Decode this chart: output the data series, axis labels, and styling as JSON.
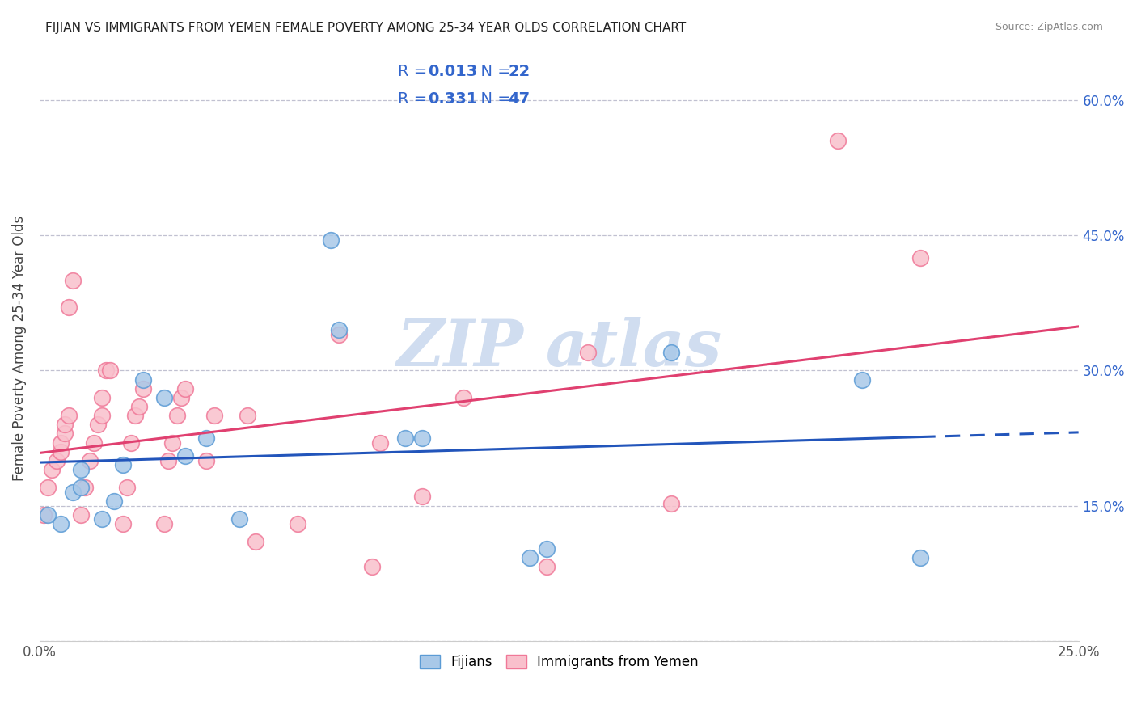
{
  "title": "FIJIAN VS IMMIGRANTS FROM YEMEN FEMALE POVERTY AMONG 25-34 YEAR OLDS CORRELATION CHART",
  "source": "Source: ZipAtlas.com",
  "ylabel": "Female Poverty Among 25-34 Year Olds",
  "xlim": [
    0,
    0.25
  ],
  "ylim": [
    0,
    0.65
  ],
  "xticks": [
    0.0,
    0.05,
    0.1,
    0.15,
    0.2,
    0.25
  ],
  "yticks": [
    0.0,
    0.15,
    0.3,
    0.45,
    0.6
  ],
  "fijians_R": "0.013",
  "fijians_N": "22",
  "yemen_R": "0.331",
  "yemen_N": "47",
  "fijian_color": "#a8c8e8",
  "yemen_color": "#f9c0cc",
  "fijian_edge_color": "#5b9bd5",
  "yemen_edge_color": "#f07898",
  "fijian_line_color": "#2255bb",
  "yemen_line_color": "#e04070",
  "legend_text_color": "#3366cc",
  "watermark_color": "#d0ddf0",
  "fijian_x": [
    0.002,
    0.005,
    0.008,
    0.01,
    0.01,
    0.015,
    0.018,
    0.02,
    0.025,
    0.03,
    0.035,
    0.04,
    0.048,
    0.07,
    0.072,
    0.088,
    0.092,
    0.118,
    0.122,
    0.152,
    0.198,
    0.212
  ],
  "fijian_y": [
    0.14,
    0.13,
    0.165,
    0.17,
    0.19,
    0.135,
    0.155,
    0.195,
    0.29,
    0.27,
    0.205,
    0.225,
    0.135,
    0.445,
    0.345,
    0.225,
    0.225,
    0.092,
    0.102,
    0.32,
    0.29,
    0.092
  ],
  "yemen_x": [
    0.001,
    0.002,
    0.003,
    0.004,
    0.005,
    0.005,
    0.006,
    0.006,
    0.007,
    0.007,
    0.008,
    0.01,
    0.011,
    0.012,
    0.013,
    0.014,
    0.015,
    0.015,
    0.016,
    0.017,
    0.02,
    0.021,
    0.022,
    0.023,
    0.024,
    0.025,
    0.03,
    0.031,
    0.032,
    0.033,
    0.034,
    0.035,
    0.04,
    0.042,
    0.05,
    0.052,
    0.062,
    0.072,
    0.08,
    0.082,
    0.092,
    0.102,
    0.122,
    0.132,
    0.152,
    0.192,
    0.212
  ],
  "yemen_y": [
    0.14,
    0.17,
    0.19,
    0.2,
    0.21,
    0.22,
    0.23,
    0.24,
    0.25,
    0.37,
    0.4,
    0.14,
    0.17,
    0.2,
    0.22,
    0.24,
    0.25,
    0.27,
    0.3,
    0.3,
    0.13,
    0.17,
    0.22,
    0.25,
    0.26,
    0.28,
    0.13,
    0.2,
    0.22,
    0.25,
    0.27,
    0.28,
    0.2,
    0.25,
    0.25,
    0.11,
    0.13,
    0.34,
    0.082,
    0.22,
    0.16,
    0.27,
    0.082,
    0.32,
    0.152,
    0.555,
    0.425
  ]
}
